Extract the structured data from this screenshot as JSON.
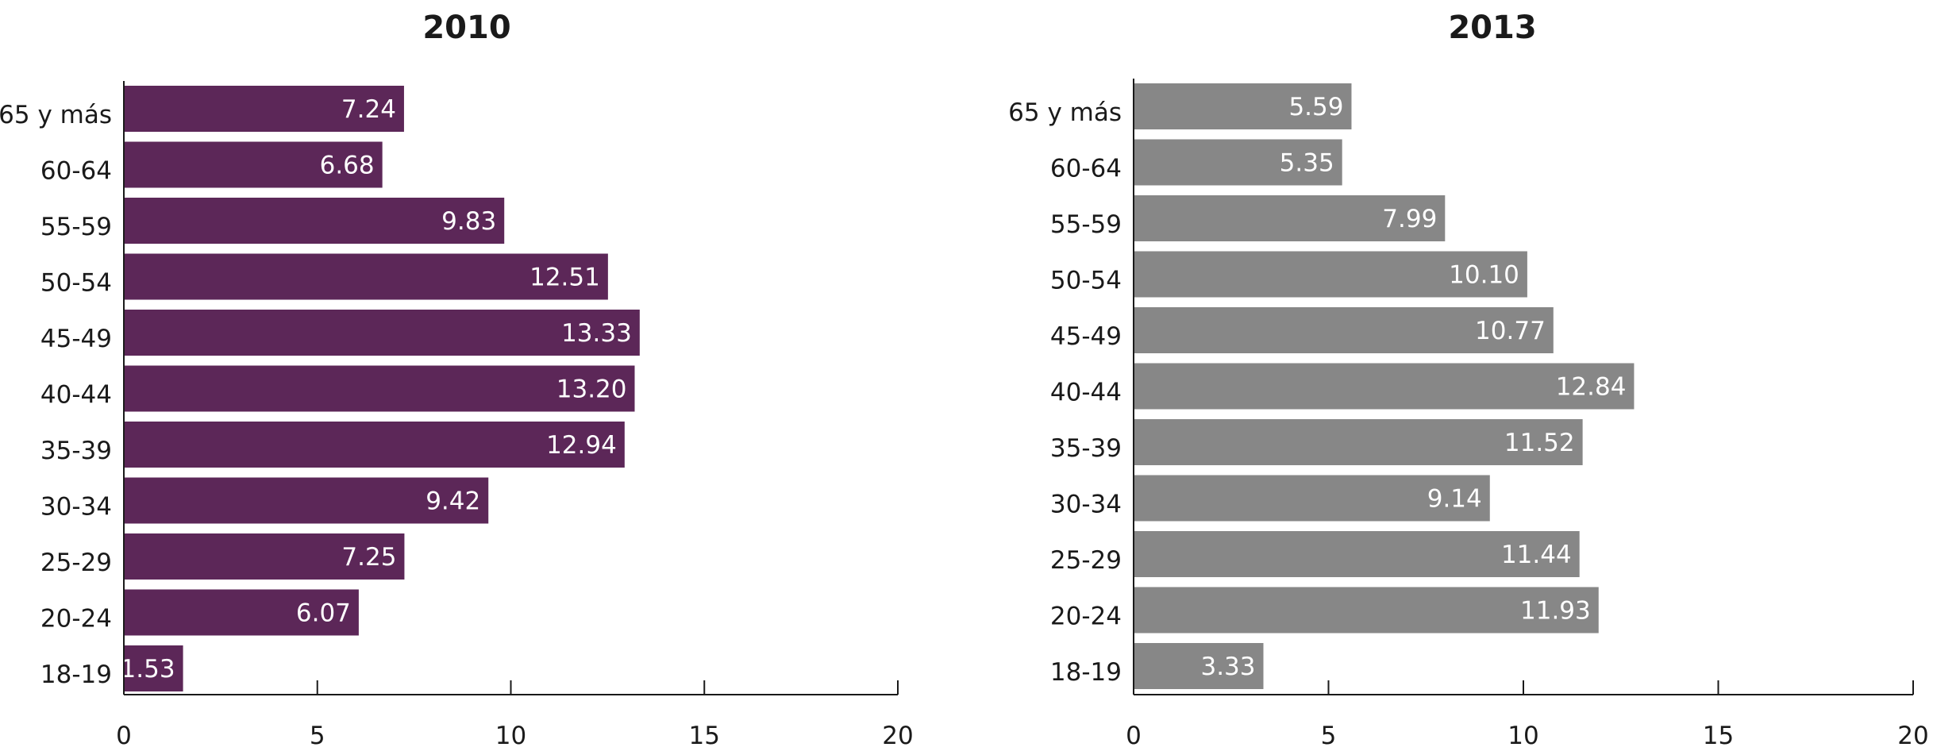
{
  "colors": {
    "left_bar": "#5c2758",
    "right_bar": "#878787",
    "axis": "#1a1a1a",
    "text": "#1a1a1a",
    "bar_label": "#ffffff"
  },
  "chart_data": [
    {
      "type": "bar",
      "orientation": "horizontal",
      "title": "2010",
      "categories": [
        "18-19",
        "20-24",
        "25-29",
        "30-34",
        "35-39",
        "40-44",
        "45-49",
        "50-54",
        "55-59",
        "60-64",
        "65 y más"
      ],
      "values": [
        1.53,
        6.07,
        7.25,
        9.42,
        12.94,
        13.2,
        13.33,
        12.51,
        9.83,
        6.68,
        7.24
      ],
      "value_labels": [
        "1.53",
        "6.07",
        "7.25",
        "9.42",
        "12.94",
        "13.20",
        "13.33",
        "12.51",
        "9.83",
        "6.68",
        "7.24"
      ],
      "xlim": [
        0,
        20
      ],
      "xticks": [
        "0",
        "5",
        "10",
        "15",
        "20"
      ],
      "grid": false,
      "legend": "none"
    },
    {
      "type": "bar",
      "orientation": "horizontal",
      "title": "2013",
      "categories": [
        "18-19",
        "20-24",
        "25-29",
        "30-34",
        "35-39",
        "40-44",
        "45-49",
        "50-54",
        "55-59",
        "60-64",
        "65 y más"
      ],
      "values": [
        3.33,
        11.93,
        11.44,
        9.14,
        11.52,
        12.84,
        10.77,
        10.1,
        7.99,
        5.35,
        5.59
      ],
      "value_labels": [
        "3.33",
        "11.93",
        "11.44",
        "9.14",
        "11.52",
        "12.84",
        "10.77",
        "10.10",
        "7.99",
        "5.35",
        "5.59"
      ],
      "xlim": [
        0,
        20
      ],
      "xticks": [
        "0",
        "5",
        "10",
        "15",
        "20"
      ],
      "grid": false,
      "legend": "none"
    }
  ]
}
